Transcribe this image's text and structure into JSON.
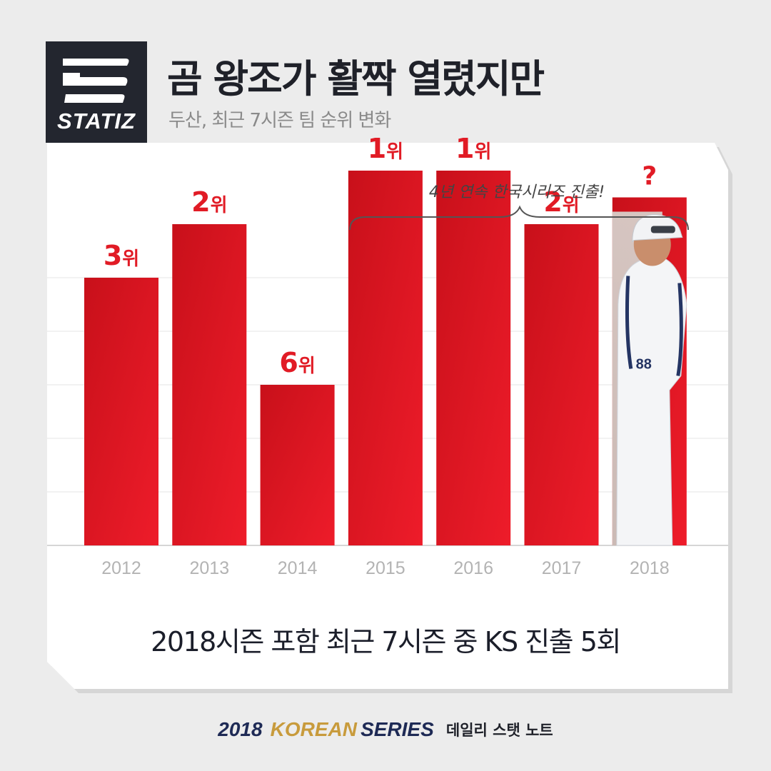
{
  "brand": {
    "logo_text": "STATIZ",
    "logo_icon": "statiz-stripes-icon"
  },
  "header": {
    "title": "곰 왕조가 활짝 열렸지만",
    "subtitle": "두산, 최근 7시즌 팀 순위 변화"
  },
  "annotation": {
    "text": "4년 연속 한국시리즈 진출!",
    "icon": "curly-brace-icon"
  },
  "summary": "2018시즌 포함 최근 7시즌 중 KS 진출 5회",
  "footer": {
    "year": "2018",
    "korean": "KOREAN",
    "series": "SERIES",
    "note": "데일리 스탯 노트"
  },
  "colors": {
    "bar_top": "#c8101a",
    "bar_bottom": "#ee1c2a",
    "label": "#e11b25",
    "title": "#1f2129",
    "footer_navy": "#1e2a55",
    "footer_gold": "#c89b3c"
  },
  "chart_data": {
    "type": "bar",
    "categories": [
      "2012",
      "2013",
      "2014",
      "2015",
      "2016",
      "2017",
      "2018"
    ],
    "values": [
      3,
      2,
      6,
      1,
      1,
      2,
      null
    ],
    "labels": [
      "3위",
      "2위",
      "6위",
      "1위",
      "1위",
      "2위",
      "?"
    ],
    "bar_height_scale": [
      5,
      6,
      3,
      7,
      7,
      6,
      6.5
    ],
    "y_axis": "rank (lower is better)",
    "grid": true,
    "last_bar_image": "manager-photo"
  }
}
